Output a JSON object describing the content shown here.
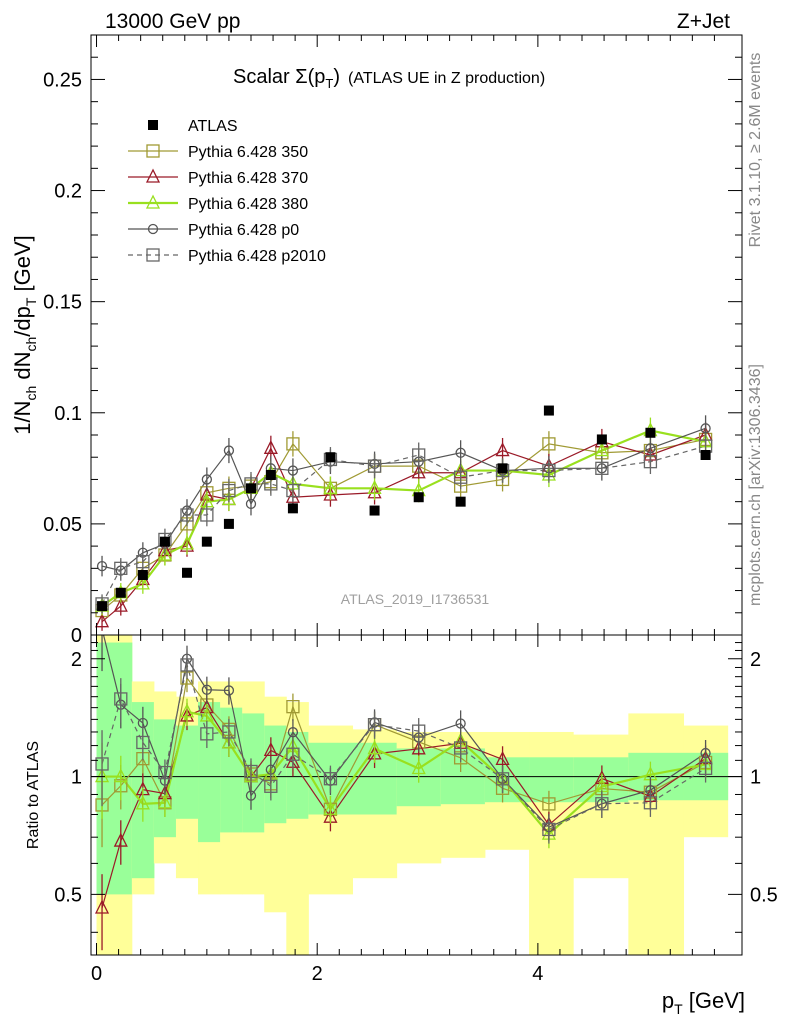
{
  "header": {
    "left": "13000 GeV pp",
    "right": "Z+Jet"
  },
  "side": {
    "rivet": "Rivet 3.1.10, ≥ 2.6M events",
    "mcplots": "mcplots.cern.ch [arXiv:1306.3436]"
  },
  "chart_data": {
    "type": "scatter",
    "title": "Scalar Σ(p_T) (ATLAS UE in Z production)",
    "watermark": "ATLAS_2019_I1736531",
    "xlabel": "p_T [GeV]",
    "ylabel": "1/N_ch dN_ch/dp_T [GeV]",
    "ratio_ylabel": "Ratio to ATLAS",
    "xlim": [
      -0.05,
      5.85
    ],
    "ylim": [
      0,
      0.27
    ],
    "ratio_ylim": [
      0.35,
      2.3
    ],
    "x_ticks": [
      "0",
      "2",
      "4"
    ],
    "y_ticks": [
      "0",
      "0.05",
      "0.1",
      "0.15",
      "0.2",
      "0.25"
    ],
    "ratio_ticks": [
      "0.5",
      "1",
      "2"
    ],
    "legend_position": "top-left",
    "x": [
      0.05,
      0.22,
      0.42,
      0.62,
      0.82,
      1.0,
      1.2,
      1.4,
      1.58,
      1.78,
      2.12,
      2.52,
      2.92,
      3.3,
      3.68,
      4.1,
      4.58,
      5.02,
      5.52
    ],
    "bands": {
      "edges": [
        0.0,
        0.32,
        0.52,
        0.72,
        0.92,
        1.12,
        1.32,
        1.52,
        1.72,
        1.92,
        2.32,
        2.72,
        3.12,
        3.52,
        3.92,
        4.32,
        4.82,
        5.32,
        5.72
      ],
      "green": [
        [
          0.5,
          2.2
        ],
        [
          0.55,
          1.55
        ],
        [
          0.7,
          1.4
        ],
        [
          0.78,
          1.35
        ],
        [
          0.68,
          1.55
        ],
        [
          0.72,
          1.5
        ],
        [
          0.72,
          1.45
        ],
        [
          0.76,
          1.35
        ],
        [
          0.78,
          1.3
        ],
        [
          0.8,
          1.22
        ],
        [
          0.8,
          1.22
        ],
        [
          0.84,
          1.18
        ],
        [
          0.85,
          1.18
        ],
        [
          0.86,
          1.12
        ],
        [
          0.86,
          1.12
        ],
        [
          0.86,
          1.12
        ],
        [
          0.87,
          1.15
        ],
        [
          0.87,
          1.15
        ]
      ],
      "yellow": [
        [
          0.3,
          2.3
        ],
        [
          0.5,
          1.75
        ],
        [
          0.6,
          1.65
        ],
        [
          0.55,
          1.6
        ],
        [
          0.5,
          1.75
        ],
        [
          0.5,
          1.75
        ],
        [
          0.5,
          1.75
        ],
        [
          0.45,
          1.6
        ],
        [
          0.35,
          1.55
        ],
        [
          0.5,
          1.35
        ],
        [
          0.55,
          1.32
        ],
        [
          0.6,
          1.3
        ],
        [
          0.62,
          1.3
        ],
        [
          0.65,
          1.3
        ],
        [
          0.35,
          1.3
        ],
        [
          0.55,
          1.28
        ],
        [
          0.35,
          1.45
        ],
        [
          0.7,
          1.35
        ]
      ]
    },
    "data": {
      "name": "ATLAS",
      "color": "#000000",
      "values": [
        0.013,
        0.019,
        0.027,
        0.042,
        0.028,
        0.042,
        0.05,
        0.066,
        0.072,
        0.057,
        0.08,
        0.056,
        0.062,
        0.06,
        0.075,
        0.101,
        0.088,
        0.091,
        0.081
      ]
    },
    "series": [
      {
        "name": "Pythia 6.428 350",
        "color": "#a09a34",
        "marker": "square",
        "dash": "",
        "values": [
          0.011,
          0.018,
          0.03,
          0.036,
          0.05,
          0.064,
          0.066,
          0.067,
          0.069,
          0.086,
          0.066,
          0.076,
          0.076,
          0.067,
          0.07,
          0.086,
          0.082,
          0.083,
          0.088
        ]
      },
      {
        "name": "Pythia 6.428 370",
        "color": "#9a1a28",
        "marker": "triangle",
        "dash": "",
        "values": [
          0.006,
          0.013,
          0.025,
          0.038,
          0.04,
          0.063,
          0.061,
          0.066,
          0.084,
          0.062,
          0.063,
          0.064,
          0.073,
          0.073,
          0.083,
          0.076,
          0.087,
          0.081,
          0.09
        ]
      },
      {
        "name": "Pythia 6.428 380",
        "color": "#99e01e",
        "marker": "triangle",
        "dash": "",
        "values": [
          0.013,
          0.019,
          0.023,
          0.036,
          0.041,
          0.06,
          0.061,
          0.066,
          0.073,
          0.068,
          0.066,
          0.066,
          0.065,
          0.074,
          0.074,
          0.072,
          0.083,
          0.092,
          0.087
        ]
      },
      {
        "name": "Pythia 6.428 p0",
        "color": "#555555",
        "marker": "circle",
        "dash": "",
        "values": [
          0.031,
          0.029,
          0.037,
          0.041,
          0.056,
          0.07,
          0.083,
          0.059,
          0.075,
          0.074,
          0.078,
          0.077,
          0.078,
          0.082,
          0.074,
          0.075,
          0.075,
          0.084,
          0.093
        ]
      },
      {
        "name": "Pythia 6.428 p2010",
        "color": "#666666",
        "marker": "square",
        "dash": "5,4",
        "values": [
          0.014,
          0.03,
          0.033,
          0.043,
          0.054,
          0.054,
          0.065,
          0.068,
          0.068,
          0.065,
          0.079,
          0.076,
          0.081,
          0.071,
          0.074,
          0.074,
          0.075,
          0.078,
          0.085
        ]
      }
    ]
  }
}
